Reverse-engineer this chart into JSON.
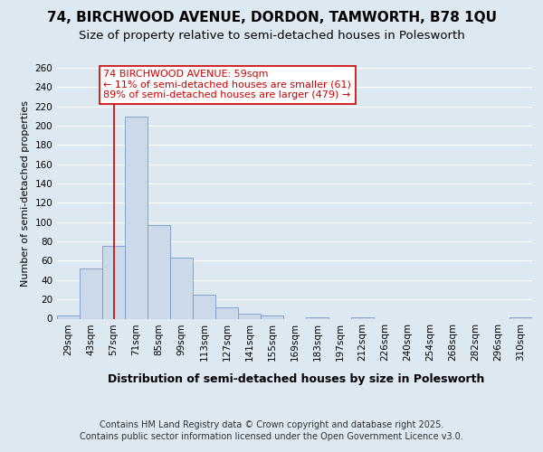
{
  "title1": "74, BIRCHWOOD AVENUE, DORDON, TAMWORTH, B78 1QU",
  "title2": "Size of property relative to semi-detached houses in Polesworth",
  "xlabel": "Distribution of semi-detached houses by size in Polesworth",
  "ylabel": "Number of semi-detached properties",
  "categories": [
    "29sqm",
    "43sqm",
    "57sqm",
    "71sqm",
    "85sqm",
    "99sqm",
    "113sqm",
    "127sqm",
    "141sqm",
    "155sqm",
    "169sqm",
    "183sqm",
    "197sqm",
    "212sqm",
    "226sqm",
    "240sqm",
    "254sqm",
    "268sqm",
    "282sqm",
    "296sqm",
    "310sqm"
  ],
  "values": [
    3,
    52,
    75,
    209,
    97,
    63,
    25,
    12,
    5,
    3,
    0,
    1,
    0,
    1,
    0,
    0,
    0,
    0,
    0,
    0,
    1
  ],
  "bar_color": "#ccd9e8",
  "bar_edge_color": "#7799cc",
  "vline_x_index": 2,
  "vline_color": "#cc0000",
  "annotation_text": "74 BIRCHWOOD AVENUE: 59sqm\n← 11% of semi-detached houses are smaller (61)\n89% of semi-detached houses are larger (479) →",
  "annotation_box_color": "#ffffff",
  "annotation_box_edge_color": "#cc0000",
  "annotation_text_color": "#cc0000",
  "background_color": "#dde8f0",
  "plot_bg_color": "#dde8f0",
  "grid_color": "#ffffff",
  "ylim": [
    0,
    260
  ],
  "yticks": [
    0,
    20,
    40,
    60,
    80,
    100,
    120,
    140,
    160,
    180,
    200,
    220,
    240,
    260
  ],
  "footer_line1": "Contains HM Land Registry data © Crown copyright and database right 2025.",
  "footer_line2": "Contains public sector information licensed under the Open Government Licence v3.0.",
  "title1_fontsize": 11,
  "title2_fontsize": 9.5,
  "xlabel_fontsize": 9,
  "ylabel_fontsize": 8,
  "tick_fontsize": 7.5,
  "annotation_fontsize": 8,
  "footer_fontsize": 7
}
